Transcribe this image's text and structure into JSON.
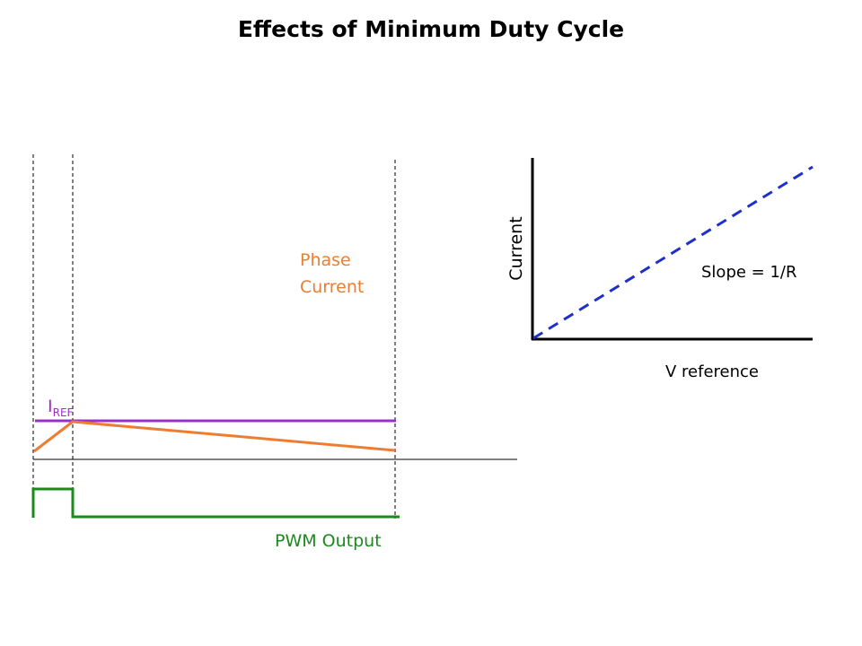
{
  "slide": {
    "title": "Effects of Minimum Duty Cycle"
  },
  "waveform": {
    "phase_current_label_line1": "Phase",
    "phase_current_label_line2": "Current",
    "iref_label_main": "I",
    "iref_label_sub": "REF",
    "pwm_label": "PWM Output"
  },
  "graph": {
    "ylabel": "Current",
    "xlabel": "V reference",
    "slope_label": "Slope = 1/R"
  },
  "colors": {
    "title": "#000000",
    "phase_current": "#ED7D31",
    "iref": "#9B30C8",
    "pwm": "#1A8A1A",
    "slope_line": "#1F2FCC",
    "axes": "#000000",
    "markers": "#000000"
  }
}
